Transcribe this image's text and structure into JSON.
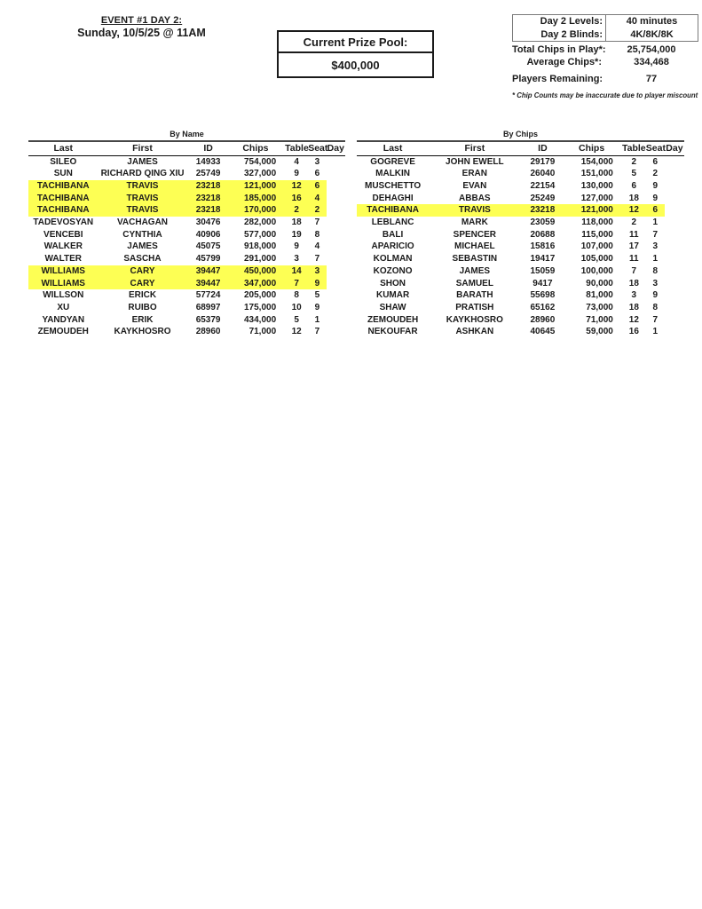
{
  "header": {
    "event_title": "EVENT #1 DAY 2:",
    "event_datetime": "Sunday, 10/5/25 @ 11AM"
  },
  "prize_pool": {
    "label": "Current Prize Pool:",
    "value": "$400,000"
  },
  "info_panel": {
    "boxed_rows": [
      {
        "label": "Day 2 Levels:",
        "value": "40 minutes"
      },
      {
        "label": "Day 2 Blinds:",
        "value": "4K/8K/8K"
      }
    ],
    "stat_rows": [
      {
        "label": "Total Chips in Play*:",
        "value": "25,754,000"
      },
      {
        "label": "Average Chips*:",
        "value": "334,468"
      },
      {
        "label": "Players Remaining:",
        "value": "77"
      }
    ],
    "footnote": "* Chip Counts may be inaccurate due to player miscount"
  },
  "highlight_color": "#fdff54",
  "tables": [
    {
      "title": "By Name",
      "columns": [
        "Last",
        "First",
        "ID",
        "Chips",
        "Table",
        "Seat",
        "Day"
      ],
      "highlight_rows": [
        2,
        3,
        4,
        9,
        10
      ],
      "rows": [
        [
          "SILEO",
          "JAMES",
          "14933",
          "754,000",
          "4",
          "3",
          ""
        ],
        [
          "SUN",
          "RICHARD QING XIU",
          "25749",
          "327,000",
          "9",
          "6",
          ""
        ],
        [
          "TACHIBANA",
          "TRAVIS",
          "23218",
          "121,000",
          "12",
          "6",
          ""
        ],
        [
          "TACHIBANA",
          "TRAVIS",
          "23218",
          "185,000",
          "16",
          "4",
          ""
        ],
        [
          "TACHIBANA",
          "TRAVIS",
          "23218",
          "170,000",
          "2",
          "2",
          ""
        ],
        [
          "TADEVOSYAN",
          "VACHAGAN",
          "30476",
          "282,000",
          "18",
          "7",
          ""
        ],
        [
          "VENCEBI",
          "CYNTHIA",
          "40906",
          "577,000",
          "19",
          "8",
          ""
        ],
        [
          "WALKER",
          "JAMES",
          "45075",
          "918,000",
          "9",
          "4",
          ""
        ],
        [
          "WALTER",
          "SASCHA",
          "45799",
          "291,000",
          "3",
          "7",
          ""
        ],
        [
          "WILLIAMS",
          "CARY",
          "39447",
          "450,000",
          "14",
          "3",
          ""
        ],
        [
          "WILLIAMS",
          "CARY",
          "39447",
          "347,000",
          "7",
          "9",
          ""
        ],
        [
          "WILLSON",
          "ERICK",
          "57724",
          "205,000",
          "8",
          "5",
          ""
        ],
        [
          "XU",
          "RUIBO",
          "68997",
          "175,000",
          "10",
          "9",
          ""
        ],
        [
          "YANDYAN",
          "ERIK",
          "65379",
          "434,000",
          "5",
          "1",
          ""
        ],
        [
          "ZEMOUDEH",
          "KAYKHOSRO",
          "28960",
          "71,000",
          "12",
          "7",
          ""
        ]
      ]
    },
    {
      "title": "By Chips",
      "columns": [
        "Last",
        "First",
        "ID",
        "Chips",
        "Table",
        "Seat",
        "Day"
      ],
      "highlight_rows": [
        4
      ],
      "rows": [
        [
          "GOGREVE",
          "JOHN EWELL",
          "29179",
          "154,000",
          "2",
          "6",
          ""
        ],
        [
          "MALKIN",
          "ERAN",
          "26040",
          "151,000",
          "5",
          "2",
          ""
        ],
        [
          "MUSCHETTO",
          "EVAN",
          "22154",
          "130,000",
          "6",
          "9",
          ""
        ],
        [
          "DEHAGHI",
          "ABBAS",
          "25249",
          "127,000",
          "18",
          "9",
          ""
        ],
        [
          "TACHIBANA",
          "TRAVIS",
          "23218",
          "121,000",
          "12",
          "6",
          ""
        ],
        [
          "LEBLANC",
          "MARK",
          "23059",
          "118,000",
          "2",
          "1",
          ""
        ],
        [
          "BALI",
          "SPENCER",
          "20688",
          "115,000",
          "11",
          "7",
          ""
        ],
        [
          "APARICIO",
          "MICHAEL",
          "15816",
          "107,000",
          "17",
          "3",
          ""
        ],
        [
          "KOLMAN",
          "SEBASTIN",
          "19417",
          "105,000",
          "11",
          "1",
          ""
        ],
        [
          "KOZONO",
          "JAMES",
          "15059",
          "100,000",
          "7",
          "8",
          ""
        ],
        [
          "SHON",
          "SAMUEL",
          "9417",
          "90,000",
          "18",
          "3",
          ""
        ],
        [
          "KUMAR",
          "BARATH",
          "55698",
          "81,000",
          "3",
          "9",
          ""
        ],
        [
          "SHAW",
          "PRATISH",
          "65162",
          "73,000",
          "18",
          "8",
          ""
        ],
        [
          "ZEMOUDEH",
          "KAYKHOSRO",
          "28960",
          "71,000",
          "12",
          "7",
          ""
        ],
        [
          "NEKOUFAR",
          "ASHKAN",
          "40645",
          "59,000",
          "16",
          "1",
          ""
        ]
      ]
    }
  ]
}
